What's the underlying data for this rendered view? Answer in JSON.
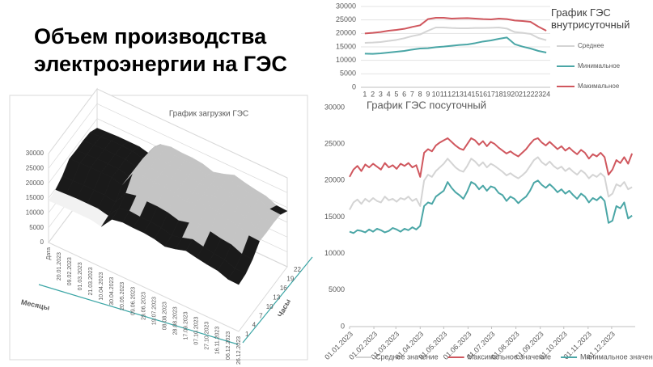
{
  "title": "Объем производства электроэнергии на ГЭС",
  "chart_data": [
    {
      "type": "surface",
      "title": "График загрузки ГЭС",
      "x_label": "Месяцы",
      "y_label": "Часы",
      "categories": [
        "Дата",
        "20.01.2023",
        "09.02.2023",
        "01.03.2023",
        "21.03.2023",
        "10.04.2023",
        "30.04.2023",
        "20.05.2023",
        "09.06.2023",
        "29.06.2023",
        "19.07.2023",
        "08.08.2023",
        "28.08.2023",
        "17.09.2023",
        "07.10.2023",
        "27.10.2023",
        "16.11.2023",
        "06.12.2023",
        "26.12.2023"
      ],
      "hours": [
        1,
        4,
        7,
        10,
        13,
        16,
        19,
        22
      ],
      "z": [
        [
          14100,
          14300,
          14400,
          14400,
          14400,
          13700,
          17800,
          18500,
          18300,
          18300,
          17900,
          17000,
          17800,
          18900,
          18200,
          17600,
          17200,
          15900,
          15800
        ],
        [
          14600,
          14800,
          15000,
          15000,
          15000,
          14200,
          18500,
          19200,
          18900,
          18900,
          18600,
          17600,
          18500,
          19600,
          18800,
          18200,
          17800,
          16500,
          16300
        ],
        [
          16200,
          16300,
          16500,
          16500,
          16500,
          15700,
          20400,
          21200,
          20900,
          20900,
          20500,
          19500,
          20400,
          21700,
          20800,
          20100,
          19700,
          18200,
          18100
        ],
        [
          18900,
          19100,
          19300,
          19300,
          19300,
          18300,
          23900,
          24800,
          24400,
          24400,
          24000,
          22800,
          23900,
          25300,
          24300,
          23500,
          23000,
          21300,
          21100
        ],
        [
          18700,
          18900,
          19100,
          19100,
          19100,
          18200,
          23700,
          24500,
          24200,
          24200,
          23800,
          22600,
          23700,
          25100,
          24100,
          23300,
          22800,
          21100,
          20900
        ],
        [
          18800,
          19000,
          19200,
          19100,
          19200,
          18100,
          23600,
          24600,
          24100,
          24300,
          23700,
          22500,
          23600,
          25000,
          24000,
          23400,
          22700,
          21200,
          21000
        ],
        [
          18500,
          18700,
          19000,
          19000,
          18900,
          18000,
          23400,
          24300,
          24000,
          24000,
          23500,
          22300,
          23400,
          24900,
          23900,
          23100,
          22600,
          20900,
          20700
        ],
        [
          16800,
          17000,
          17200,
          17200,
          17200,
          16300,
          21300,
          22100,
          21800,
          21800,
          21400,
          20300,
          21300,
          22600,
          21700,
          21000,
          20500,
          19000,
          18800
        ]
      ],
      "zlim": [
        0,
        30000
      ],
      "zticks": [
        0,
        5000,
        10000,
        15000,
        20000,
        25000,
        30000
      ],
      "band_colors": [
        "#3aa5a5",
        "#a6a6a6",
        "#f2f2f2",
        "#1a1a1a",
        "#c4c4c4",
        "#808080"
      ]
    },
    {
      "type": "line",
      "title": "График ГЭС внутрисуточный",
      "categories": [
        1,
        2,
        3,
        4,
        5,
        6,
        7,
        8,
        9,
        10,
        11,
        12,
        13,
        14,
        15,
        16,
        17,
        18,
        19,
        20,
        21,
        22,
        23,
        24
      ],
      "series": [
        {
          "name": "Среднее",
          "color": "#d4d4d4",
          "values": [
            16500,
            16600,
            16800,
            17200,
            17600,
            18200,
            19000,
            19600,
            21000,
            22200,
            22200,
            22000,
            21900,
            21900,
            22000,
            22000,
            22100,
            22200,
            21800,
            20500,
            20200,
            19800,
            18300,
            17500
          ]
        },
        {
          "name": "Минимальное",
          "color": "#4aa6a6",
          "values": [
            12500,
            12400,
            12600,
            12900,
            13200,
            13500,
            14000,
            14400,
            14500,
            14900,
            15100,
            15400,
            15700,
            15900,
            16400,
            17000,
            17400,
            18000,
            18500,
            16000,
            15100,
            14400,
            13500,
            12900
          ]
        },
        {
          "name": "Макимальное",
          "color": "#d0575e",
          "values": [
            20000,
            20200,
            20500,
            21000,
            21300,
            21700,
            22400,
            23000,
            25300,
            25800,
            25800,
            25500,
            25600,
            25700,
            25500,
            25300,
            25200,
            25500,
            25300,
            24800,
            24600,
            24300,
            22500,
            21000
          ]
        }
      ],
      "ylim": [
        0,
        30000
      ],
      "yticks": [
        0,
        5000,
        10000,
        15000,
        20000,
        25000,
        30000
      ],
      "grid": true,
      "legend": "right"
    },
    {
      "type": "line",
      "title": "График ГЭС посуточный",
      "x": [
        0,
        5,
        10,
        15,
        20,
        25,
        30,
        35,
        40,
        45,
        50,
        55,
        60,
        65,
        70,
        75,
        80,
        85,
        90,
        95,
        100,
        105,
        110,
        115,
        120,
        125,
        130,
        135,
        140,
        145,
        150,
        155,
        160,
        165,
        170,
        175,
        180,
        185,
        190,
        195,
        200,
        205,
        210,
        215,
        220,
        225,
        230,
        235,
        240,
        245,
        250,
        255,
        260,
        265,
        270,
        275,
        280,
        285,
        290,
        295,
        300,
        305,
        310,
        315,
        320,
        325,
        330,
        335,
        340,
        345,
        350,
        355,
        360
      ],
      "xlim": [
        0,
        364
      ],
      "xticks": [
        {
          "value": 0,
          "label": "01.01.2023"
        },
        {
          "value": 31,
          "label": "01.02.2023"
        },
        {
          "value": 59,
          "label": "01.03.2023"
        },
        {
          "value": 90,
          "label": "01.04.2023"
        },
        {
          "value": 120,
          "label": "01.05.2023"
        },
        {
          "value": 151,
          "label": "01.06.2023"
        },
        {
          "value": 181,
          "label": "01.07.2023"
        },
        {
          "value": 212,
          "label": "01.08.2023"
        },
        {
          "value": 243,
          "label": "01.09.2023"
        },
        {
          "value": 273,
          "label": "01.10.2023"
        },
        {
          "value": 304,
          "label": "01.11.2023"
        },
        {
          "value": 334,
          "label": "01.12.2023"
        }
      ],
      "series": [
        {
          "name": "Среднее значение",
          "color": "#d4d4d4",
          "values": [
            16000,
            17000,
            17400,
            16800,
            17500,
            17100,
            17600,
            17200,
            17000,
            17800,
            17300,
            17500,
            17100,
            17600,
            17400,
            17800,
            17200,
            17500,
            16500,
            20000,
            20800,
            20500,
            21300,
            21800,
            22300,
            23000,
            22400,
            21800,
            21400,
            21200,
            22000,
            23000,
            22600,
            22000,
            22500,
            21800,
            22300,
            22000,
            21600,
            21200,
            20700,
            21000,
            20600,
            20300,
            20700,
            21200,
            22000,
            22800,
            23200,
            22500,
            22100,
            22600,
            22000,
            21600,
            21900,
            21300,
            21700,
            21200,
            20800,
            21400,
            21000,
            20300,
            20800,
            20500,
            21000,
            20500,
            17800,
            18200,
            19500,
            19200,
            19800,
            18800,
            19100
          ]
        },
        {
          "name": "Максимальное значение",
          "color": "#d0575e",
          "values": [
            20500,
            21500,
            22000,
            21300,
            22200,
            21800,
            22300,
            21900,
            21500,
            22400,
            21800,
            22100,
            21600,
            22300,
            22000,
            22400,
            21800,
            22100,
            20500,
            23800,
            24300,
            24000,
            24800,
            25200,
            25500,
            25800,
            25300,
            24800,
            24400,
            24200,
            25000,
            25800,
            25500,
            24900,
            25400,
            24700,
            25300,
            25000,
            24500,
            24100,
            23700,
            24000,
            23600,
            23300,
            23800,
            24300,
            25000,
            25600,
            25800,
            25200,
            24800,
            25300,
            24800,
            24300,
            24700,
            24100,
            24500,
            24000,
            23600,
            24200,
            23800,
            23000,
            23600,
            23300,
            23800,
            23200,
            20800,
            21500,
            22800,
            22400,
            23200,
            22300,
            23700
          ]
        },
        {
          "name": "Минимальное значение",
          "color": "#4aa6a6",
          "values": [
            13000,
            12800,
            13200,
            13100,
            12900,
            13300,
            13000,
            13400,
            13200,
            12900,
            13100,
            13500,
            13300,
            13000,
            13400,
            13200,
            13600,
            13300,
            13800,
            16500,
            17000,
            16800,
            17800,
            18200,
            18600,
            19800,
            19000,
            18400,
            18000,
            17500,
            18500,
            19800,
            19500,
            18800,
            19300,
            18600,
            19200,
            19000,
            18300,
            18000,
            17200,
            17800,
            17500,
            16900,
            17400,
            17800,
            18600,
            19700,
            20000,
            19400,
            19000,
            19500,
            19000,
            18400,
            18800,
            18200,
            18600,
            18000,
            17500,
            18200,
            17800,
            17000,
            17600,
            17300,
            17800,
            17200,
            14200,
            14500,
            16500,
            16200,
            17000,
            14800,
            15200
          ]
        }
      ],
      "ylim": [
        0,
        30000
      ],
      "yticks": [
        0,
        5000,
        10000,
        15000,
        20000,
        25000,
        30000
      ],
      "grid": false,
      "legend": "bottom"
    }
  ]
}
